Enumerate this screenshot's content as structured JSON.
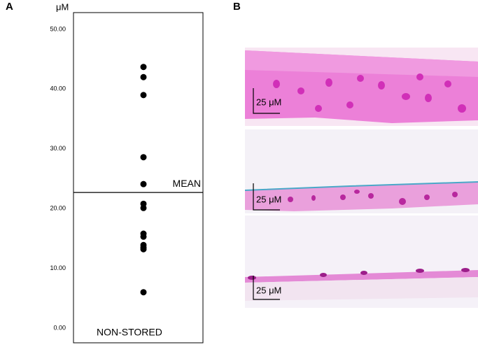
{
  "chart_data": {
    "type": "strip",
    "panel_label": "A",
    "unit": "μM",
    "values": [
      43.7,
      42.0,
      39.0,
      28.6,
      24.1,
      20.8,
      20.1,
      15.8,
      15.3,
      13.9,
      13.5,
      13.2,
      6.0
    ],
    "color": "#000000",
    "mean": 22.7,
    "mean_label": "MEAN",
    "group_label": "NON-STORED",
    "ylim": [
      -2.46,
      52.8
    ],
    "yticks": [
      {
        "value": 0,
        "label": "0.00"
      },
      {
        "value": 10,
        "label": "10.00"
      },
      {
        "value": 20,
        "label": "20.00"
      },
      {
        "value": 30,
        "label": "30.00"
      },
      {
        "value": 40,
        "label": "40.00"
      },
      {
        "value": 50,
        "label": "50.00"
      }
    ]
  },
  "panel_b": {
    "label": "B",
    "scale_labels": [
      "25 μM",
      "25 μM",
      "25 μM"
    ]
  }
}
